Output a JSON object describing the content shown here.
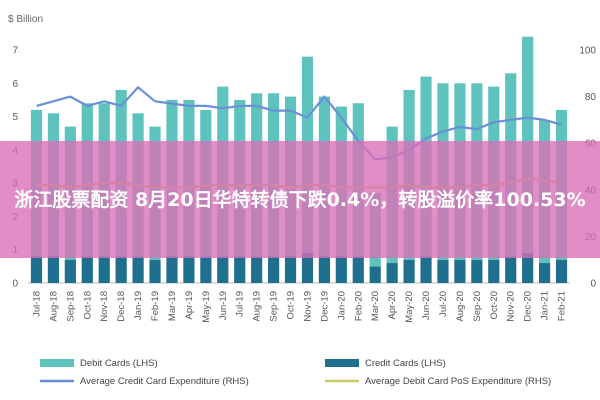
{
  "headline": "浙江股票配资 8月20日华特转债下跌0.4%，转股溢价率100.53%",
  "chart_data": {
    "type": "bar",
    "left_axis_unit": "$ Billion",
    "categories": [
      "Jul-18",
      "Aug-18",
      "Sep-18",
      "Oct-18",
      "Nov-18",
      "Dec-18",
      "Jan-19",
      "Feb-19",
      "Mar-19",
      "Apr-19",
      "May-19",
      "Jun-19",
      "Jul-19",
      "Aug-19",
      "Sep-19",
      "Oct-19",
      "Nov-19",
      "Dec-19",
      "Jan-20",
      "Feb-20",
      "Mar-20",
      "Apr-20",
      "May-20",
      "Jun-20",
      "Jul-20",
      "Aug-20",
      "Sep-20",
      "Oct-20",
      "Nov-20",
      "Dec-20",
      "Jan-21",
      "Feb-21"
    ],
    "series": [
      {
        "name": "Debit Cards (LHS)",
        "kind": "bar",
        "axis": "left",
        "color": "#5fc3bd",
        "values": [
          4.4,
          4.3,
          4.0,
          4.6,
          4.6,
          5.0,
          4.3,
          4.0,
          4.7,
          4.7,
          4.4,
          5.1,
          4.7,
          4.9,
          4.9,
          4.8,
          5.9,
          4.8,
          4.5,
          4.6,
          2.2,
          4.1,
          5.1,
          5.4,
          5.3,
          5.3,
          5.3,
          5.2,
          5.5,
          6.5,
          4.3,
          4.5
        ]
      },
      {
        "name": "Credit Cards (LHS)",
        "kind": "bar",
        "axis": "left",
        "color": "#1f6f8f",
        "values": [
          0.8,
          0.8,
          0.7,
          0.8,
          0.8,
          0.8,
          0.8,
          0.7,
          0.8,
          0.8,
          0.8,
          0.8,
          0.8,
          0.8,
          0.8,
          0.8,
          0.9,
          0.8,
          0.8,
          0.8,
          0.5,
          0.6,
          0.7,
          0.8,
          0.7,
          0.7,
          0.7,
          0.7,
          0.8,
          0.9,
          0.6,
          0.7
        ]
      },
      {
        "name": "Average Credit Card Expenditure (RHS)",
        "kind": "line",
        "axis": "right",
        "color": "#6b8fd6",
        "values": [
          76,
          78,
          80,
          76,
          78,
          76,
          84,
          78,
          77,
          76,
          76,
          75,
          76,
          76,
          74,
          74,
          71,
          80,
          71,
          61,
          53,
          54,
          57,
          62,
          65,
          67,
          66,
          69,
          70,
          71,
          70,
          68
        ]
      },
      {
        "name": "Average Debit Card PoS Expenditure (RHS)",
        "kind": "line",
        "axis": "right",
        "color": "#c9c96a",
        "values": [
          42,
          42,
          41,
          42,
          43,
          43,
          42,
          41,
          41,
          41,
          42,
          42,
          42,
          42,
          42,
          41,
          42,
          42,
          41,
          41,
          41,
          41,
          42,
          41,
          41,
          41,
          42,
          42,
          43,
          45,
          44,
          43
        ]
      }
    ],
    "left_axis": {
      "min": 0,
      "max": 7,
      "ticks": [
        0,
        1,
        2,
        3,
        4,
        5,
        6,
        7
      ]
    },
    "right_axis": {
      "min": 0,
      "max": 100,
      "ticks": [
        0,
        20,
        40,
        60,
        80,
        100
      ]
    },
    "grid": false,
    "legend_placement": "bottom"
  }
}
